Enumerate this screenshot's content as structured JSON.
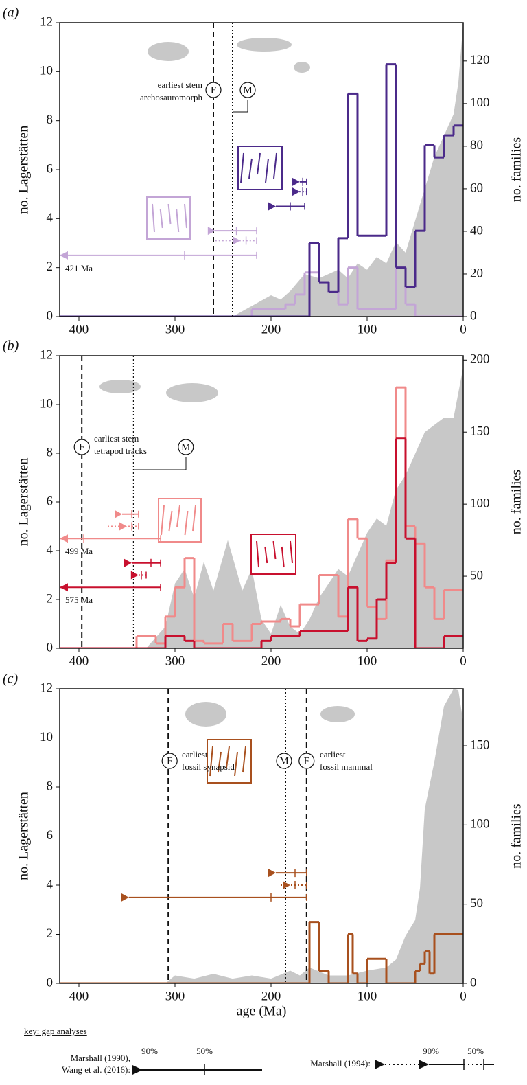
{
  "chart_data": [
    {
      "type": "step",
      "panel_label": "(a)",
      "xlim": [
        420,
        0
      ],
      "xticks": [
        400,
        300,
        200,
        100,
        0
      ],
      "ylim": [
        0,
        12
      ],
      "yticks": [
        0,
        2,
        4,
        6,
        8,
        10,
        12
      ],
      "y_label": "no. Lagerstätten",
      "y2lim": [
        0,
        138
      ],
      "y2ticks": [
        0,
        20,
        40,
        60,
        80,
        100,
        120
      ],
      "y2_label": "no. families",
      "series": [
        {
          "color": "#c3a5d6",
          "bins": [
            420,
            220,
            185,
            175,
            165,
            150,
            140,
            130,
            120,
            110,
            70,
            60,
            50,
            0
          ],
          "values": [
            0,
            0.3,
            0.5,
            0.9,
            1.8,
            1.4,
            1,
            0.5,
            2,
            0.3,
            2,
            0.5,
            0
          ]
        },
        {
          "color": "#4b2a8a",
          "bins": [
            420,
            160,
            150,
            140,
            130,
            120,
            110,
            80,
            70,
            60,
            50,
            40,
            30,
            20,
            10,
            0
          ],
          "values": [
            0,
            3,
            1.4,
            1,
            3.2,
            9.1,
            3.3,
            10.3,
            2,
            1.2,
            3.5,
            7,
            6.5,
            7.4,
            7.8
          ]
        }
      ],
      "families": {
        "color": "#c8c8c8",
        "axis": "y2",
        "x": [
          240,
          220,
          200,
          190,
          180,
          165,
          150,
          130,
          120,
          110,
          100,
          90,
          80,
          70,
          60,
          50,
          40,
          30,
          20,
          10,
          5,
          0
        ],
        "values": [
          0,
          5,
          10,
          8,
          12,
          20,
          18,
          22,
          18,
          25,
          22,
          28,
          25,
          35,
          30,
          45,
          60,
          75,
          85,
          95,
          110,
          138
        ]
      },
      "markers": [
        {
          "x": 260,
          "style": "dashed",
          "label": "F"
        },
        {
          "x": 240,
          "style": "dotted",
          "label": "M"
        }
      ],
      "annotations": [
        "earliest stem",
        "archosauromorph"
      ],
      "gap_bars": [
        {
          "color": "#c3a5d6",
          "y": 2.5,
          "p90": 421,
          "label": "421 Ma",
          "p50": 290,
          "end": 215
        },
        {
          "color": "#c3a5d6",
          "y": 3.5,
          "p90": 258,
          "p50": 236,
          "end": 215
        },
        {
          "color": "#c3a5d6",
          "y": 3.1,
          "start": 258,
          "p90": 232,
          "p50": 226,
          "end": 215,
          "dotted": true
        },
        {
          "color": "#4b2a8a",
          "y": 4.5,
          "p90": 195,
          "p50": 180,
          "end": 165
        },
        {
          "color": "#4b2a8a",
          "y": 5.1,
          "start": 178,
          "p90": 170,
          "p50": 167,
          "end": 163,
          "dotted": true
        },
        {
          "color": "#4b2a8a",
          "y": 5.5,
          "p90": 170,
          "p50": 167,
          "end": 163
        }
      ]
    },
    {
      "type": "step",
      "panel_label": "(b)",
      "xlim": [
        420,
        0
      ],
      "xticks": [
        400,
        300,
        200,
        100,
        0
      ],
      "ylim": [
        0,
        12
      ],
      "yticks": [
        0,
        2,
        4,
        6,
        8,
        10,
        12
      ],
      "y_label": "no. Lagerstätten",
      "y2lim": [
        0,
        203
      ],
      "y2ticks": [
        50,
        100,
        150,
        200
      ],
      "y2_label": "no. families",
      "series": [
        {
          "color": "#f08a8a",
          "bins": [
            420,
            340,
            320,
            310,
            300,
            290,
            280,
            270,
            250,
            240,
            220,
            210,
            190,
            180,
            170,
            150,
            130,
            120,
            110,
            100,
            90,
            80,
            70,
            60,
            50,
            40,
            30,
            20,
            0
          ],
          "values": [
            0,
            0.5,
            0.2,
            1.3,
            2.5,
            3.7,
            0.3,
            0.2,
            1,
            0.3,
            1,
            1.1,
            1.2,
            0.9,
            1.8,
            3,
            1.3,
            5.3,
            4.5,
            1.7,
            1.2,
            3.6,
            10.7,
            5,
            4.3,
            2.5,
            1.2,
            2.4
          ]
        },
        {
          "color": "#c8102e",
          "bins": [
            420,
            310,
            290,
            280,
            210,
            200,
            180,
            170,
            150,
            120,
            110,
            100,
            90,
            80,
            70,
            60,
            50,
            40,
            20,
            0
          ],
          "values": [
            0,
            0.5,
            0.3,
            0,
            0.3,
            0.5,
            0.5,
            0.7,
            0.7,
            2.5,
            0.3,
            0.4,
            2,
            3.5,
            8.6,
            4.5,
            0,
            0,
            0.5
          ]
        }
      ],
      "families": {
        "color": "#c8c8c8",
        "axis": "y2",
        "x": [
          330,
          310,
          300,
          290,
          280,
          270,
          260,
          245,
          230,
          220,
          210,
          200,
          190,
          180,
          170,
          160,
          150,
          140,
          130,
          120,
          110,
          100,
          90,
          80,
          70,
          60,
          50,
          40,
          30,
          20,
          10,
          0
        ],
        "values": [
          0,
          15,
          45,
          55,
          35,
          60,
          40,
          75,
          40,
          55,
          20,
          10,
          30,
          15,
          10,
          20,
          35,
          45,
          55,
          50,
          65,
          80,
          90,
          85,
          110,
          120,
          135,
          150,
          155,
          160,
          160,
          195
        ]
      },
      "markers": [
        {
          "x": 397,
          "style": "dashed",
          "label": "F"
        },
        {
          "x": 343,
          "style": "dotted",
          "label": "M"
        }
      ],
      "annotations": [
        "earliest stem",
        "tetrapod tracks"
      ],
      "gap_bars": [
        {
          "color": "#f08a8a",
          "y": 4.5,
          "p90": 499,
          "label": "499 Ma",
          "p50": 395,
          "end": 315
        },
        {
          "color": "#f08a8a",
          "y": 5.5,
          "p90": 355,
          "p50": 345,
          "end": 338
        },
        {
          "color": "#f08a8a",
          "y": 5.0,
          "start": 370,
          "p90": 350,
          "p50": 345,
          "end": 338,
          "dotted": true
        },
        {
          "color": "#c8102e",
          "y": 2.5,
          "p90": 575,
          "label": "575 Ma",
          "end": 315
        },
        {
          "color": "#c8102e",
          "y": 3.5,
          "p90": 345,
          "p50": 325,
          "end": 315
        },
        {
          "color": "#c8102e",
          "y": 3.0,
          "start": 345,
          "p90": 338,
          "p50": 335,
          "end": 330,
          "dotted": true
        }
      ]
    },
    {
      "type": "step",
      "panel_label": "(c)",
      "xlim": [
        420,
        0
      ],
      "xticks": [
        400,
        300,
        200,
        100,
        0
      ],
      "x_label": "age (Ma)",
      "ylim": [
        0,
        12
      ],
      "yticks": [
        0,
        2,
        4,
        6,
        8,
        10,
        12
      ],
      "y_label": "no. Lagerstätten",
      "y2lim": [
        0,
        186
      ],
      "y2ticks": [
        0,
        50,
        100,
        150
      ],
      "y2_label": "no. families",
      "series": [
        {
          "color": "#a8501e",
          "bins": [
            420,
            160,
            150,
            140,
            120,
            115,
            110,
            100,
            80,
            50,
            45,
            40,
            35,
            30,
            20,
            0
          ],
          "values": [
            0,
            2.5,
            0.5,
            0,
            2,
            0.4,
            0,
            1,
            0,
            0.5,
            0.8,
            1.3,
            0.4,
            2,
            2
          ]
        }
      ],
      "families": {
        "color": "#c8c8c8",
        "axis": "y2",
        "x": [
          310,
          300,
          280,
          260,
          240,
          220,
          200,
          180,
          170,
          160,
          140,
          120,
          100,
          80,
          70,
          60,
          50,
          45,
          40,
          30,
          20,
          10,
          5,
          0
        ],
        "values": [
          0,
          5,
          3,
          6,
          3,
          5,
          3,
          8,
          5,
          10,
          5,
          5,
          8,
          10,
          15,
          30,
          40,
          60,
          110,
          140,
          175,
          186,
          185,
          165
        ]
      },
      "markers": [
        {
          "x": 307,
          "style": "dashed",
          "label": "F"
        },
        {
          "x": 185,
          "style": "dotted",
          "label": "M"
        },
        {
          "x": 163,
          "style": "dashed",
          "label": "F"
        }
      ],
      "annotations": [
        "earliest",
        "fossil synapsid",
        "earliest",
        "fossil mammal"
      ],
      "gap_bars": [
        {
          "color": "#a8501e",
          "y": 4.5,
          "p90": 195,
          "p50": 175,
          "end": 163
        },
        {
          "color": "#a8501e",
          "y": 4.0,
          "start": 190,
          "p90": 180,
          "p50": 175,
          "end": 163,
          "dotted": true
        },
        {
          "color": "#a8501e",
          "y": 3.5,
          "p90": 348,
          "p50": 200,
          "end": 163
        }
      ]
    }
  ],
  "key": {
    "title": "key: gap analyses",
    "left_label": [
      "Marshall (1990),",
      "Wang et al. (2016):"
    ],
    "left_ticks": [
      "90%",
      "50%"
    ],
    "right_label": "Marshall (1994):",
    "right_ticks": [
      "90%",
      "50%"
    ]
  }
}
